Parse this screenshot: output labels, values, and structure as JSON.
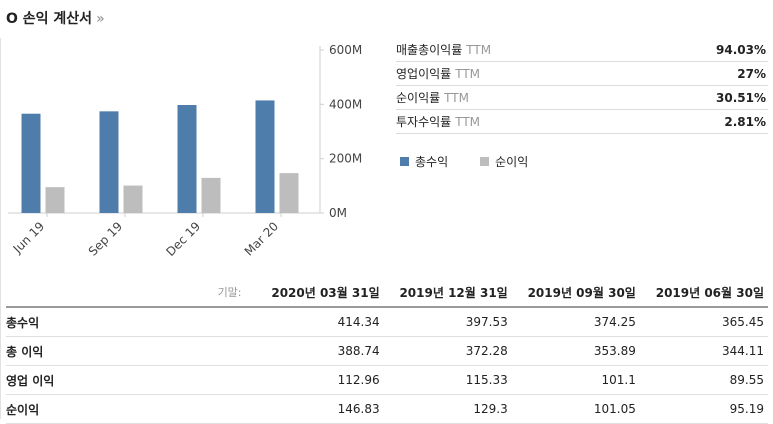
{
  "header": {
    "title": "O 손익 계산서",
    "more": "»"
  },
  "chart_data": {
    "type": "bar",
    "categories": [
      "Jun 19",
      "Sep 19",
      "Dec 19",
      "Mar 20"
    ],
    "series": [
      {
        "name": "총수익",
        "color": "#4f7dab",
        "values": [
          365.45,
          374.25,
          397.53,
          414.34
        ]
      },
      {
        "name": "순이익",
        "color": "#bdbdbd",
        "values": [
          95.19,
          101.05,
          129.3,
          146.83
        ]
      }
    ],
    "ylim": [
      0,
      600
    ],
    "yticks": [
      {
        "value": 0,
        "label": "0M"
      },
      {
        "value": 200,
        "label": "200M"
      },
      {
        "value": 400,
        "label": "400M"
      },
      {
        "value": 600,
        "label": "600M"
      }
    ],
    "grid": false,
    "legend": "below-right"
  },
  "ratios": [
    {
      "label": "매출총이익률",
      "ttm": "TTM",
      "value": "94.03%"
    },
    {
      "label": "영업이익률",
      "ttm": "TTM",
      "value": "27%"
    },
    {
      "label": "순이익률",
      "ttm": "TTM",
      "value": "30.51%"
    },
    {
      "label": "투자수익률",
      "ttm": "TTM",
      "value": "2.81%"
    }
  ],
  "legend": [
    {
      "label": "총수익",
      "color": "#4f7dab"
    },
    {
      "label": "순이익",
      "color": "#bdbdbd"
    }
  ],
  "table": {
    "period_label": "기말:",
    "columns": [
      "2020년 03월 31일",
      "2019년 12월 31일",
      "2019년 09월 30일",
      "2019년 06월 30일"
    ],
    "rows": [
      {
        "name": "총수익",
        "values": [
          "414.34",
          "397.53",
          "374.25",
          "365.45"
        ]
      },
      {
        "name": "총 이익",
        "values": [
          "388.74",
          "372.28",
          "353.89",
          "344.11"
        ]
      },
      {
        "name": "영업 이익",
        "values": [
          "112.96",
          "115.33",
          "101.1",
          "89.55"
        ]
      },
      {
        "name": "순이익",
        "values": [
          "146.83",
          "129.3",
          "101.05",
          "95.19"
        ]
      }
    ]
  }
}
